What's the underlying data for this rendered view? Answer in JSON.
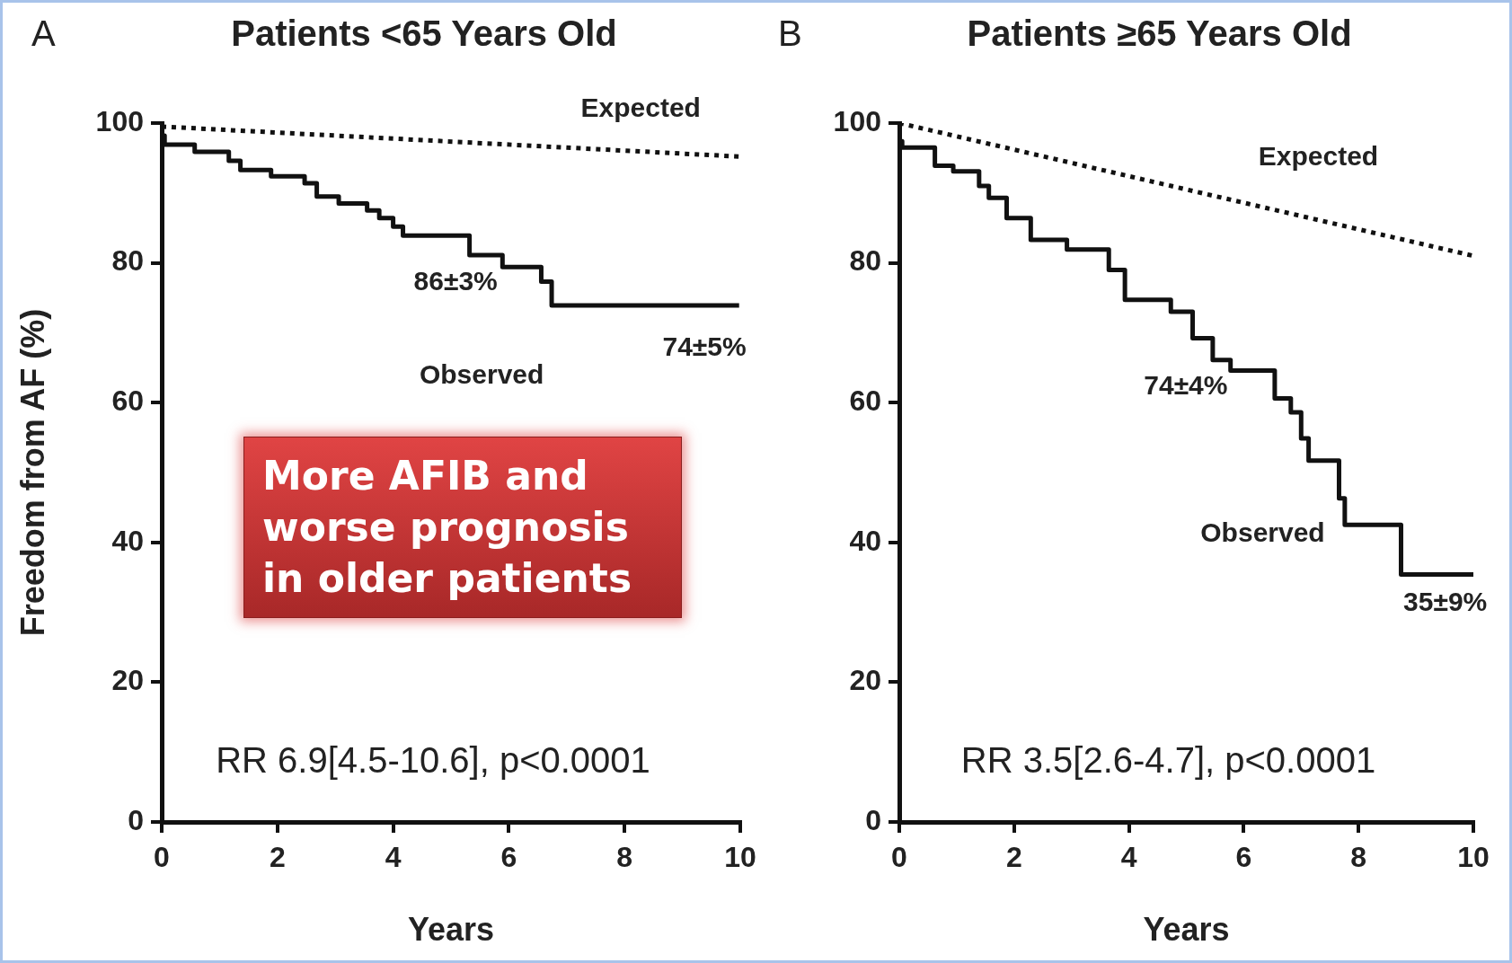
{
  "chart_data": [
    {
      "type": "step",
      "title": "Patients <65 Years Old",
      "xlabel": "Years",
      "ylabel": "Freedom from AF (%)",
      "xlim": [
        0,
        10
      ],
      "ylim": [
        0,
        100
      ],
      "xticks": [
        0,
        2,
        4,
        6,
        8,
        10
      ],
      "yticks": [
        0,
        20,
        40,
        60,
        80,
        100
      ],
      "grid": false,
      "legend": false,
      "series": [
        {
          "type": "step",
          "color": "#111111",
          "line_style": "solid",
          "x": [
            0,
            0.05,
            0.57,
            1.16,
            1.36,
            1.89,
            2.47,
            2.68,
            3.06,
            3.55,
            3.76,
            4.0,
            4.17,
            5.32,
            5.89,
            6.56,
            6.74,
            8.55,
            9.98
          ],
          "values": [
            100,
            98.2,
            96.9,
            95.9,
            94.6,
            93.3,
            92.4,
            91.4,
            89.5,
            88.5,
            87.5,
            86.4,
            85.2,
            83.9,
            81.1,
            79.4,
            77.3,
            73.9,
            73.9
          ]
        },
        {
          "type": "line",
          "color": "#111111",
          "line_style": "dotted",
          "x": [
            0,
            10
          ],
          "values": [
            99.5,
            95.2
          ]
        }
      ],
      "annotations": [
        "A",
        "RR 6.9[4.5-10.6], p<0.0001",
        "More AFIB and worse prognosis in older patients",
        "Expected",
        "86±3%",
        "Observed",
        "74±5%"
      ]
    },
    {
      "type": "step",
      "title": "Patients ≥65 Years Old",
      "xlabel": "Years",
      "xlim": [
        0,
        10
      ],
      "ylim": [
        0,
        100
      ],
      "xticks": [
        0,
        2,
        4,
        6,
        8,
        10
      ],
      "yticks": [
        0,
        20,
        40,
        60,
        80,
        100
      ],
      "grid": false,
      "legend": false,
      "series": [
        {
          "type": "step",
          "color": "#111111",
          "line_style": "solid",
          "x": [
            0,
            0.05,
            0.62,
            0.94,
            1.39,
            1.56,
            1.87,
            2.29,
            2.92,
            3.65,
            3.93,
            4.73,
            5.11,
            5.46,
            5.77,
            6.54,
            6.82,
            7.0,
            7.13,
            7.66,
            7.76,
            8.74,
            9.81,
            10.0
          ],
          "values": [
            100,
            97.4,
            96.5,
            93.9,
            93.1,
            91.0,
            89.3,
            86.4,
            83.3,
            81.9,
            79.0,
            74.7,
            73.0,
            69.2,
            66.1,
            64.6,
            60.6,
            58.6,
            54.9,
            51.7,
            46.3,
            42.5,
            35.4,
            35.4
          ]
        },
        {
          "type": "line",
          "color": "#111111",
          "line_style": "dotted",
          "x": [
            0,
            10
          ],
          "values": [
            100,
            81.0
          ]
        }
      ],
      "annotations": [
        "B",
        "RR 3.5[2.6-4.7], p<0.0001",
        "Expected",
        "74±4%",
        "Observed",
        "35±9%"
      ]
    }
  ]
}
